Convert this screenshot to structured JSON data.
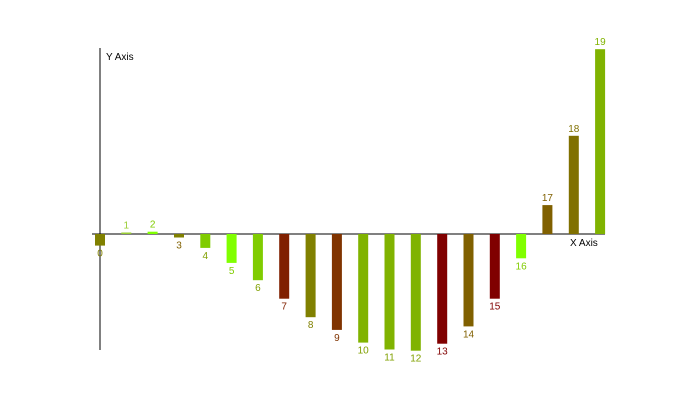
{
  "chart_data": {
    "type": "bar",
    "title": "",
    "xlabel": "X Axis",
    "ylabel": "Y Axis",
    "ylim": [
      -13,
      20.5
    ],
    "grid": false,
    "legend": "none",
    "categories": [
      "0",
      "1",
      "2",
      "3",
      "4",
      "5",
      "6",
      "7",
      "8",
      "9",
      "10",
      "11",
      "12",
      "13",
      "14",
      "15",
      "16",
      "17",
      "18",
      "19"
    ],
    "values": [
      -1,
      0,
      0.2,
      -0.3,
      -1.2,
      -2.5,
      -4,
      -5.6,
      -7.2,
      -8.3,
      -9.4,
      -10,
      -10.1,
      -9.5,
      -8,
      -5.6,
      -2.1,
      2.5,
      8.5,
      16
    ],
    "colors": [
      "#808000",
      "#99cc33",
      "#80ff00",
      "#808000",
      "#80cc00",
      "#80ff00",
      "#80cc00",
      "#802000",
      "#808000",
      "#803300",
      "#80b300",
      "#80b300",
      "#80b300",
      "#800000",
      "#806000",
      "#800000",
      "#80ff00",
      "#806000",
      "#807000",
      "#80b300"
    ],
    "label_colors": [
      "#808000",
      "#99cc33",
      "#80cc00",
      "#806000",
      "#80a000",
      "#80cc00",
      "#80a000",
      "#802000",
      "#808000",
      "#803300",
      "#80a000",
      "#80a000",
      "#80a000",
      "#800000",
      "#806000",
      "#800000",
      "#80cc00",
      "#806000",
      "#807000",
      "#80b300"
    ]
  }
}
